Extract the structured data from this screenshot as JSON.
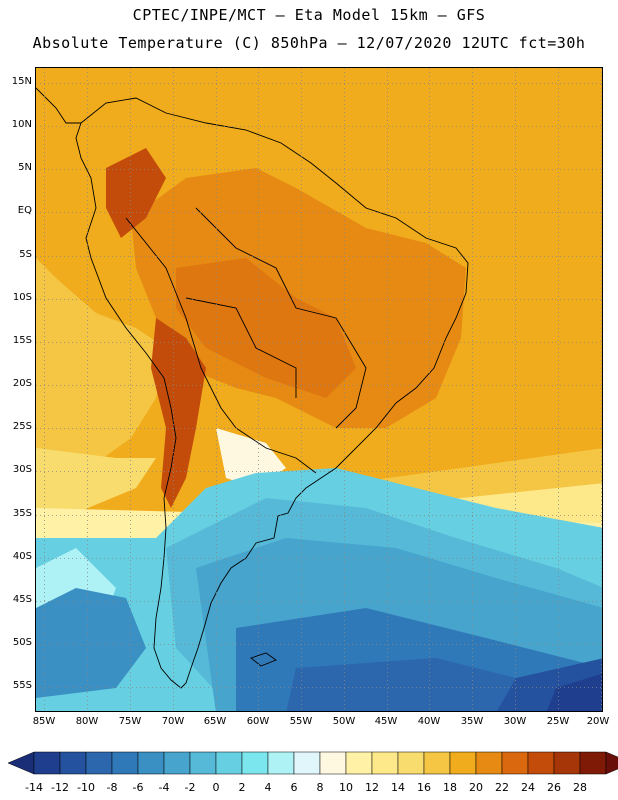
{
  "header": {
    "line1": "CPTEC/INPE/MCT –  Eta Model 15km – GFS",
    "line2": "Absolute Temperature (C) 850hPa – 12/07/2020 12UTC fct=30h"
  },
  "map": {
    "lat_labels": [
      "15N",
      "10N",
      "5N",
      "EQ",
      "5S",
      "10S",
      "15S",
      "20S",
      "25S",
      "30S",
      "35S",
      "40S",
      "45S",
      "50S",
      "55S"
    ],
    "lon_labels": [
      "85W",
      "80W",
      "75W",
      "70W",
      "65W",
      "60W",
      "55W",
      "50W",
      "45W",
      "40W",
      "35W",
      "30W",
      "25W",
      "20W"
    ]
  },
  "legend": {
    "bins": [
      {
        "label": "-14",
        "color": "#1f3f8e"
      },
      {
        "label": "-12",
        "color": "#25529e"
      },
      {
        "label": "-10",
        "color": "#2c66ad"
      },
      {
        "label": "-8",
        "color": "#3079b8"
      },
      {
        "label": "-6",
        "color": "#3a8fc3"
      },
      {
        "label": "-4",
        "color": "#46a4cd"
      },
      {
        "label": "-2",
        "color": "#55b9d7"
      },
      {
        "label": "0",
        "color": "#66d0e2"
      },
      {
        "label": "2",
        "color": "#7be6ee"
      },
      {
        "label": "4",
        "color": "#aef2f6"
      },
      {
        "label": "6",
        "color": "#e0f6fa"
      },
      {
        "label": "8",
        "color": "#fff8e0"
      },
      {
        "label": "10",
        "color": "#fff2a6"
      },
      {
        "label": "12",
        "color": "#fde88a"
      },
      {
        "label": "14",
        "color": "#f9dc6e"
      },
      {
        "label": "16",
        "color": "#f4c644"
      },
      {
        "label": "18",
        "color": "#f0ac1c"
      },
      {
        "label": "20",
        "color": "#e68a14"
      },
      {
        "label": "22",
        "color": "#d9680e"
      },
      {
        "label": "24",
        "color": "#c34c0a"
      },
      {
        "label": "26",
        "color": "#a63608"
      },
      {
        "label": "28",
        "color": "#7e1a06"
      }
    ],
    "under_color": "#1a2e78",
    "over_color": "#6a0e0a"
  }
}
